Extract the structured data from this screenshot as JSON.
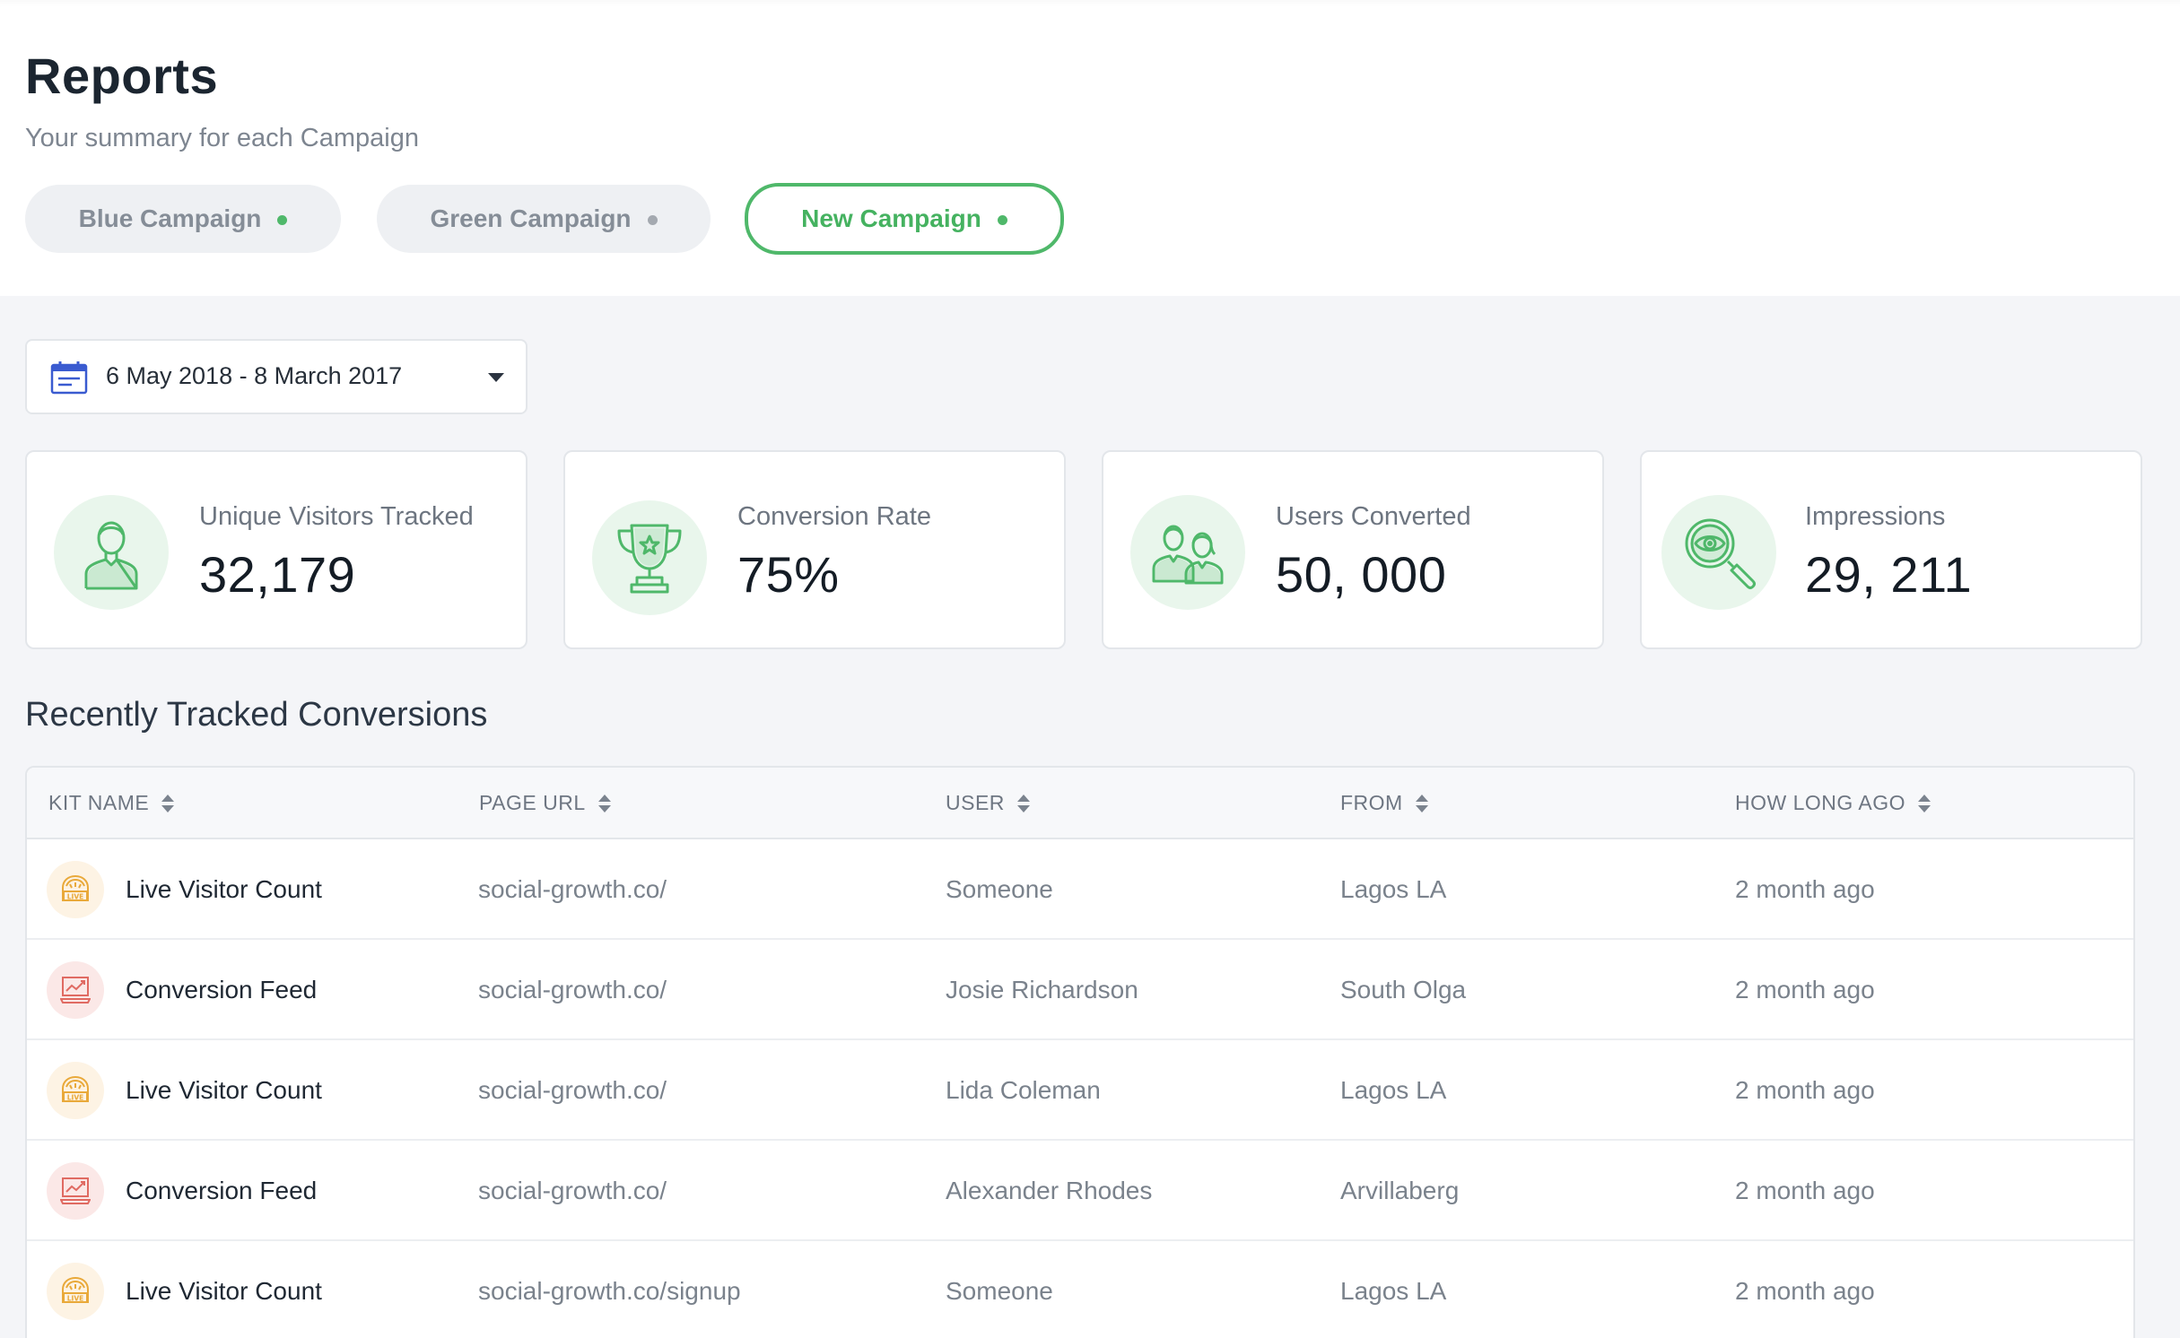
{
  "header": {
    "title": "Reports",
    "subtitle": "Your summary for each Campaign"
  },
  "campaign_tabs": [
    {
      "label": "Blue Campaign",
      "dot_color": "#4fb86a",
      "active": false
    },
    {
      "label": "Green Campaign",
      "dot_color": "#a4a9b0",
      "active": false
    },
    {
      "label": "New Campaign",
      "dot_color": "#4fb86a",
      "active": true
    }
  ],
  "date_range": {
    "label": "6 May 2018 - 8 March 2017",
    "icon": "calendar-icon"
  },
  "stats": [
    {
      "label": "Unique Visitors Tracked",
      "value": "32,179",
      "icon": "user-icon"
    },
    {
      "label": "Conversion Rate",
      "value": "75%",
      "icon": "trophy-icon"
    },
    {
      "label": "Users Converted",
      "value": "50, 000",
      "icon": "users-icon"
    },
    {
      "label": "Impressions",
      "value": "29, 211",
      "icon": "magnifier-eye-icon"
    }
  ],
  "conversions": {
    "title": "Recently Tracked Conversions",
    "columns": [
      "KIT NAME",
      "PAGE URL",
      "USER",
      "FROM",
      "HOW LONG AGO"
    ],
    "rows": [
      {
        "kit": "Live Visitor Count",
        "kit_type": "live",
        "url": "social-growth.co/",
        "user": "Someone",
        "from": "Lagos LA",
        "ago": "2 month ago"
      },
      {
        "kit": "Conversion Feed",
        "kit_type": "feed",
        "url": "social-growth.co/",
        "user": "Josie Richardson",
        "from": "South Olga",
        "ago": "2 month ago"
      },
      {
        "kit": "Live Visitor Count",
        "kit_type": "live",
        "url": "social-growth.co/",
        "user": "Lida Coleman",
        "from": "Lagos LA",
        "ago": "2 month ago"
      },
      {
        "kit": "Conversion Feed",
        "kit_type": "feed",
        "url": "social-growth.co/",
        "user": "Alexander Rhodes",
        "from": "Arvillaberg",
        "ago": "2 month ago"
      },
      {
        "kit": "Live Visitor Count",
        "kit_type": "live",
        "url": "social-growth.co/signup",
        "user": "Someone",
        "from": "Lagos LA",
        "ago": "2 month ago"
      }
    ]
  },
  "colors": {
    "accent_green": "#4fb86a",
    "live_icon": "#e9a93a",
    "feed_icon": "#e06a62"
  }
}
